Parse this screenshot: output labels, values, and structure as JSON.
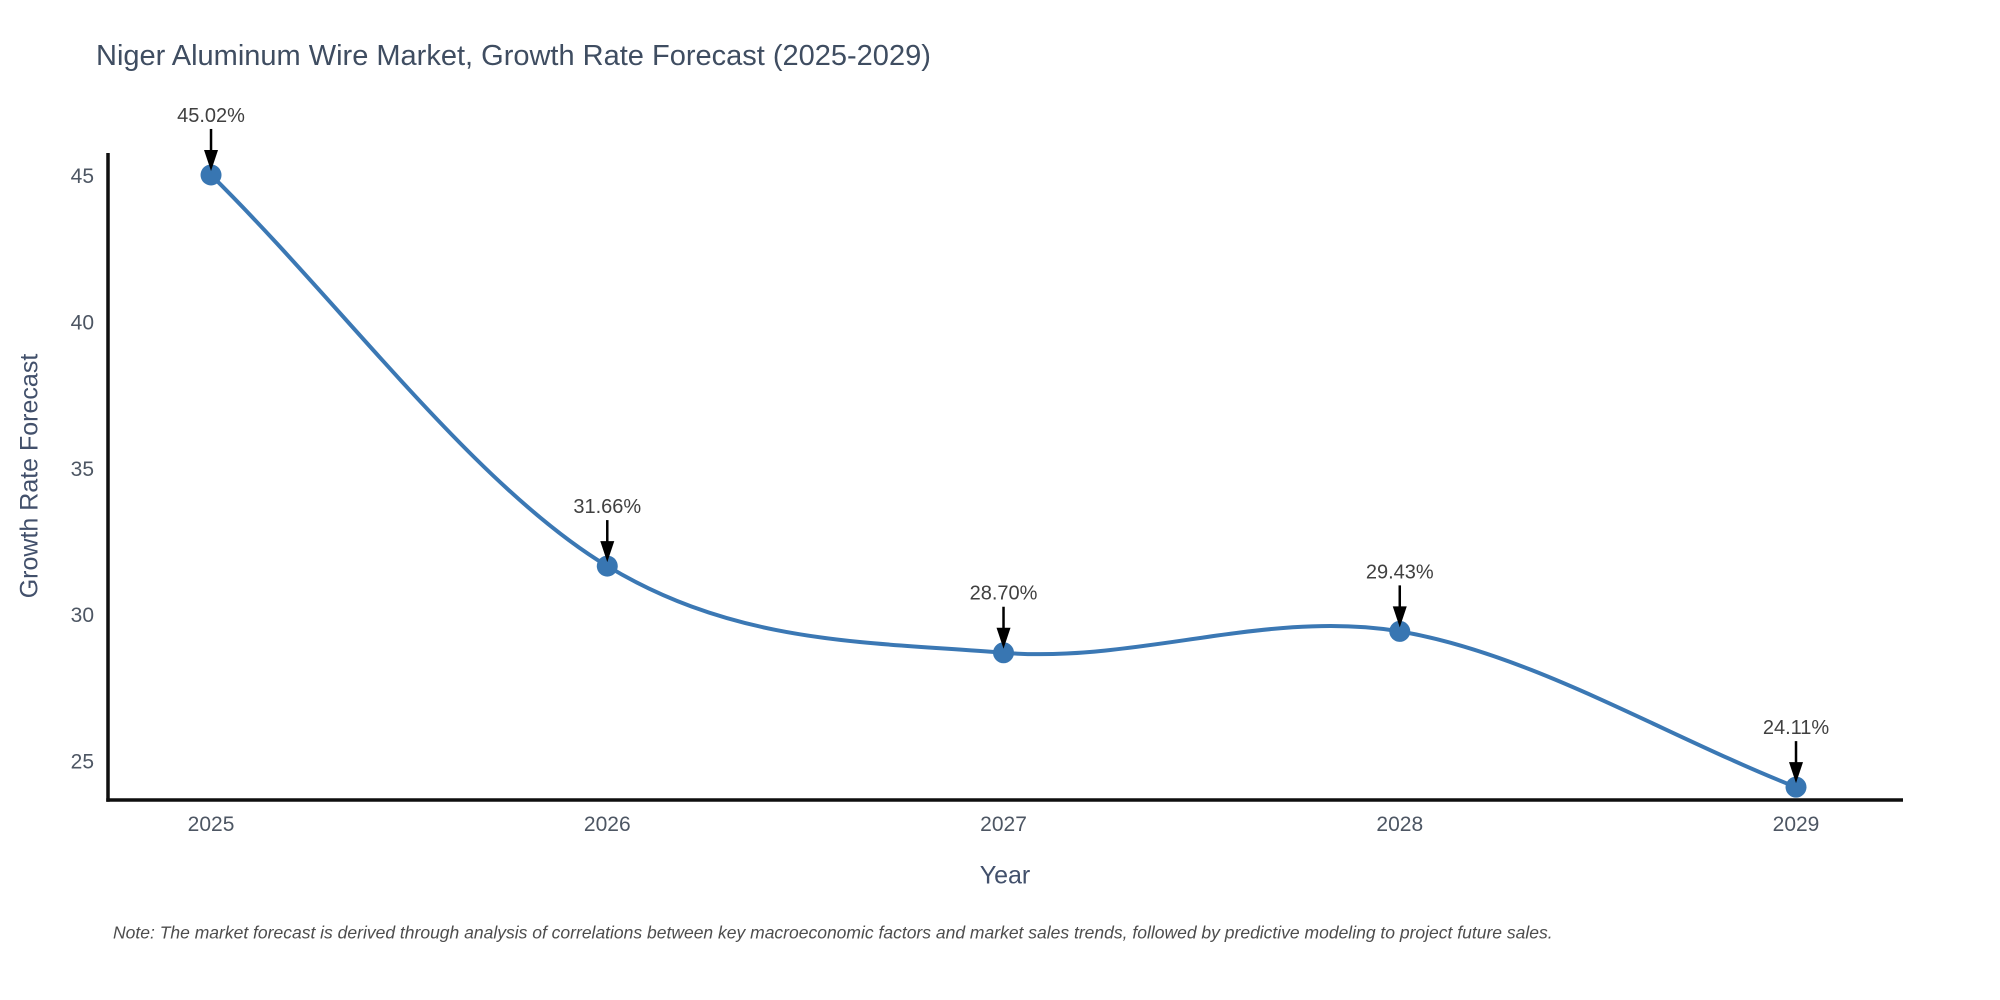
{
  "header": {
    "title": "Niger Aluminum Wire Market, Growth Rate Forecast (2025-2029)"
  },
  "chart_data": {
    "type": "line",
    "title": "Niger Aluminum Wire Market, Growth Rate Forecast (2025-2029)",
    "xlabel": "Year",
    "ylabel": "Growth Rate Forecast",
    "x": [
      2025,
      2026,
      2027,
      2028,
      2029
    ],
    "values": [
      45.02,
      31.66,
      28.7,
      29.43,
      24.11
    ],
    "point_labels": [
      "45.02%",
      "31.66%",
      "28.70%",
      "29.43%",
      "24.11%"
    ],
    "x_tick_labels": [
      "2025",
      "2026",
      "2027",
      "2028",
      "2029"
    ],
    "y_ticks": [
      25,
      30,
      35,
      40,
      45
    ],
    "xlim": [
      2024.74,
      2029.27
    ],
    "ylim": [
      23.67,
      45.77
    ],
    "grid": false,
    "legend_position": "none",
    "smoothing": "spline",
    "line_color": "#3b78b4",
    "marker_color": "#3876b2",
    "annotation_text_color": "#404040",
    "annotation_arrow_color": "#000000",
    "axis_line_color": "#0f0f0f",
    "title_color": "#3f4d61",
    "tick_label_color": "#4d5663"
  },
  "footer": {
    "note": "Note: The market forecast is derived through analysis of correlations between key macroeconomic factors and market sales trends, followed by predictive modeling to project future sales."
  }
}
